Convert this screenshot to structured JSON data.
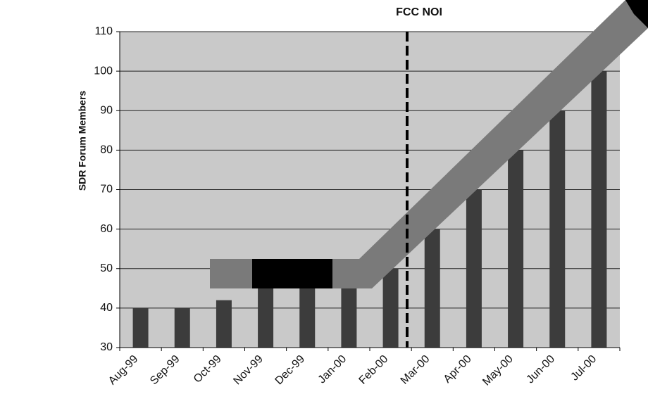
{
  "chart_data": {
    "type": "bar",
    "annotation": "FCC NOI",
    "y_label": "SDR Forum Members",
    "categories": [
      "Aug-99",
      "Sep-99",
      "Oct-99",
      "Nov-99",
      "Dec-99",
      "Jan-00",
      "Feb-00",
      "Mar-00",
      "Apr-00",
      "May-00",
      "Jun-00",
      "Jul-00"
    ],
    "values": [
      40,
      40,
      42,
      45,
      45,
      45,
      50,
      60,
      70,
      80,
      90,
      100
    ],
    "color": "#3c3c3c",
    "ylim": [
      30,
      110
    ],
    "yticks": [
      30,
      40,
      50,
      60,
      70,
      80,
      90,
      100,
      110
    ],
    "grid": true
  }
}
